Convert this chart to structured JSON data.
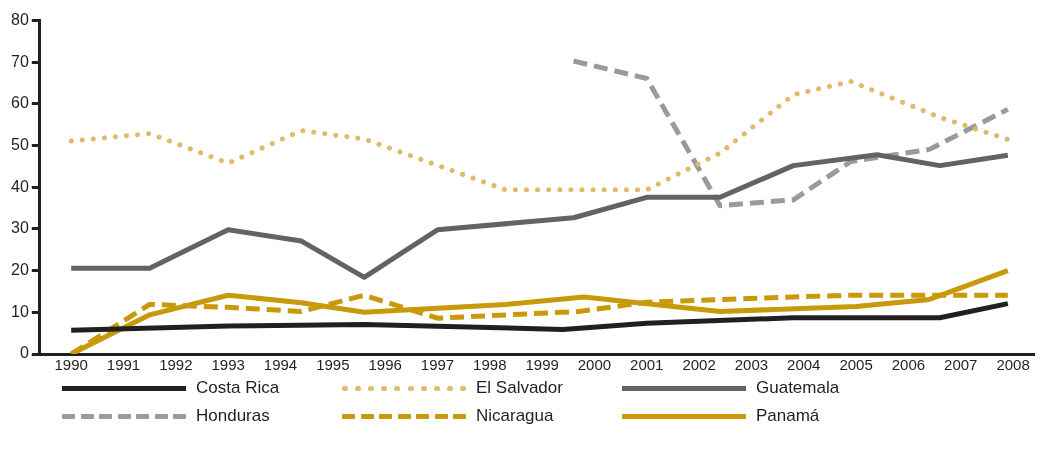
{
  "chart_data": {
    "type": "line",
    "xlim": [
      1989.4,
      2008.4
    ],
    "xticks": [
      1990,
      1991,
      1992,
      1993,
      1994,
      1995,
      1996,
      1997,
      1998,
      1999,
      2000,
      2001,
      2002,
      2003,
      2004,
      2005,
      2006,
      2007,
      2008
    ],
    "ylim": [
      0,
      80
    ],
    "yticks": [
      0,
      10,
      20,
      30,
      40,
      50,
      60,
      70,
      80
    ],
    "grid": false,
    "legend": "bottom",
    "marker": "none",
    "series": [
      {
        "name": "Costa Rica",
        "color": "#231f20",
        "line_style": "solid",
        "x": [
          1990,
          1993,
          1995.6,
          1999.4,
          2001,
          2003.8,
          2006.6,
          2007.9
        ],
        "values": [
          5.7,
          6.7,
          7.1,
          5.9,
          7.4,
          8.7,
          8.7,
          12.1
        ]
      },
      {
        "name": "El Salvador",
        "color": "#e0b96a",
        "line_style": "dotted",
        "x": [
          1990,
          1991.5,
          1993,
          1994.4,
          1995.6,
          1998.3,
          2001,
          2002.4,
          2003.8,
          2004.9,
          2006.6,
          2007.9
        ],
        "values": [
          51.1,
          52.9,
          45.8,
          53.6,
          51.6,
          39.4,
          39.4,
          48.2,
          62.2,
          65.4,
          56.8,
          51.5
        ]
      },
      {
        "name": "Guatemala",
        "color": "#636363",
        "line_style": "solid",
        "x": [
          1990,
          1991.5,
          1993,
          1994.4,
          1995.6,
          1997,
          1999.6,
          2001,
          2002.4,
          2003.8,
          2005.4,
          2006.6,
          2007.9
        ],
        "values": [
          20.6,
          20.6,
          29.8,
          27.1,
          18.4,
          29.8,
          32.7,
          37.6,
          37.6,
          45.2,
          47.8,
          45.2,
          47.7
        ]
      },
      {
        "name": "Honduras",
        "color": "#9a9a9c",
        "line_style": "dashed",
        "x": [
          1999.6,
          2001,
          2002.4,
          2003.8,
          2004.9,
          2006.4,
          2007.9
        ],
        "values": [
          70.3,
          66.1,
          35.6,
          37,
          46.2,
          49.1,
          58.7
        ]
      },
      {
        "name": "Nicaragua",
        "color": "#c8990a",
        "line_style": "dashed",
        "x": [
          1990,
          1991.5,
          1993,
          1994.4,
          1995.6,
          1997,
          1999.7,
          2001,
          2003.8,
          2004.9,
          2007.9
        ],
        "values": [
          0,
          11.9,
          11.2,
          10.2,
          14.1,
          8.6,
          10.2,
          12.4,
          13.7,
          14.1,
          14.1
        ]
      },
      {
        "name": "Panamá",
        "color": "#c8990a",
        "line_style": "solid",
        "x": [
          1990,
          1991.5,
          1993,
          1994.4,
          1995.6,
          1997,
          1998.3,
          1999.8,
          2002.4,
          2005,
          2006.4,
          2007.9
        ],
        "values": [
          0,
          9.4,
          14.1,
          12.3,
          10,
          11,
          11.9,
          13.7,
          10.2,
          11.4,
          13.1,
          20
        ]
      }
    ]
  }
}
